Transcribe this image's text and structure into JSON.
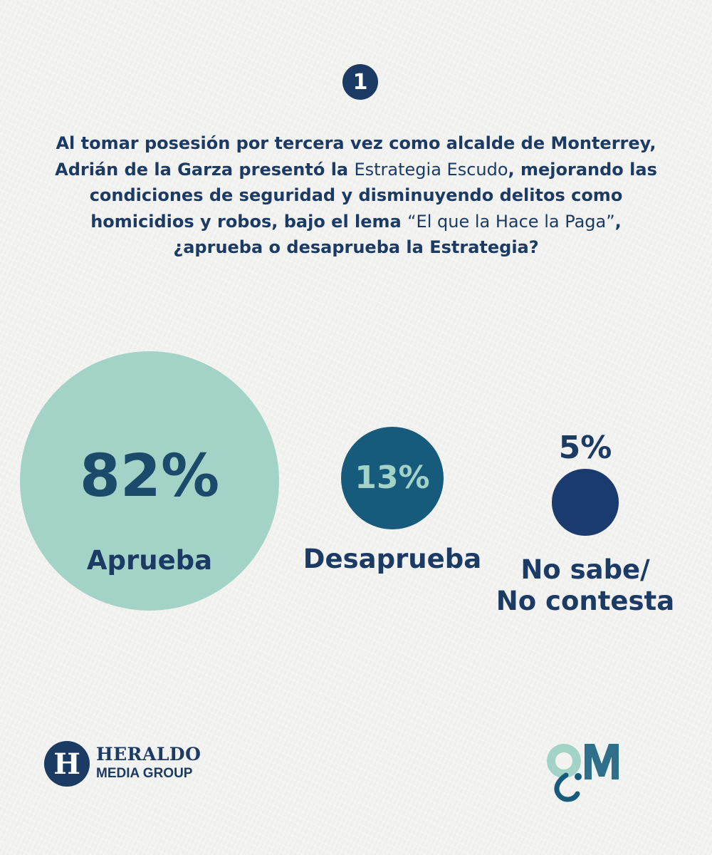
{
  "question": {
    "number": "1",
    "parts": [
      {
        "text": "Al tomar posesión por tercera vez como alcalde de Monterrey, Adrián de la Garza presentó la ",
        "style": "bold"
      },
      {
        "text": "Estrategia Escudo",
        "style": "light"
      },
      {
        "text": ", mejorando las condiciones de seguridad y disminuyendo delitos como homicidios y robos, bajo el lema ",
        "style": "bold"
      },
      {
        "text": "“El que la Hace la Paga”",
        "style": "light"
      },
      {
        "text": ", ¿aprueba o desaprueba la Estrategia?",
        "style": "bold"
      }
    ]
  },
  "chart_data": {
    "type": "bubble",
    "title": "",
    "series": [
      {
        "label": "Aprueba",
        "value": 82,
        "display": "82%",
        "color": "#a3d3c6",
        "text_color": "#1b4a6b"
      },
      {
        "label": "Desaprueba",
        "value": 13,
        "display": "13%",
        "color": "#165a7c",
        "text_color": "#a3d3c6"
      },
      {
        "label": "No sabe/\nNo contesta",
        "value": 5,
        "display": "5%",
        "color": "#1b3a6e",
        "text_color": "#1b3a64"
      }
    ]
  },
  "brands": {
    "left_logo_letter": "H",
    "left_logo_line1": "HERALDO",
    "left_logo_line2": "MEDIA GROUP",
    "right_logo_mark": "QM",
    "right_logo_text": "Question Mark"
  },
  "colors": {
    "navy": "#1b3a64",
    "teal_light": "#a3d3c6",
    "teal_dark": "#165a7c"
  }
}
